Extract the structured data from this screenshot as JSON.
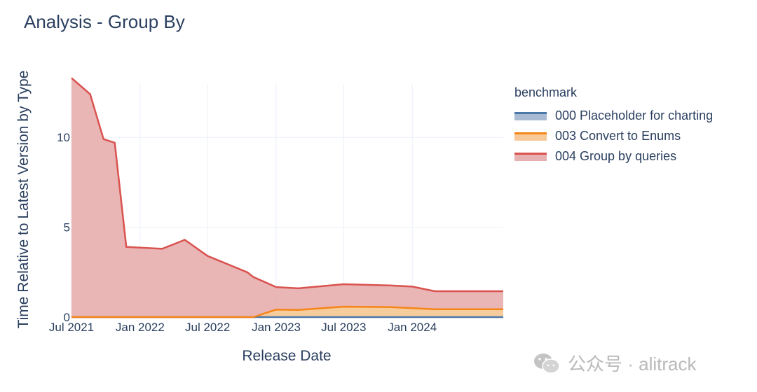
{
  "title": "Analysis - Group By",
  "watermark": "公众号 · alitrack",
  "chart_data": {
    "type": "area",
    "title": "Analysis - Group By",
    "xlabel": "Release Date",
    "ylabel": "Time Relative to Latest Version by Type",
    "x_ticks": [
      "Jul 2021",
      "Jan 2022",
      "Jul 2022",
      "Jan 2023",
      "Jul 2023",
      "Jan 2024"
    ],
    "y_ticks": [
      0,
      5,
      10
    ],
    "xlim": [
      "2021-07-01",
      "2024-09-01"
    ],
    "ylim": [
      0,
      13.9
    ],
    "stacked": true,
    "grid": true,
    "legend_title": "benchmark",
    "legend_position": "right",
    "series": [
      {
        "name": "000 Placeholder for charting",
        "line_color": "#4c78a8",
        "fill_color": "#a9bbd3",
        "x": [
          "2021-07-01",
          "2024-09-01"
        ],
        "values": [
          0,
          0
        ]
      },
      {
        "name": "003 Convert to Enums",
        "line_color": "#f58518",
        "fill_color": "#f7c998",
        "x": [
          "2021-07-01",
          "2022-11-01",
          "2023-01-01",
          "2023-03-01",
          "2023-07-01",
          "2023-11-01",
          "2024-03-01",
          "2024-09-01"
        ],
        "values": [
          0,
          0,
          0.42,
          0.4,
          0.58,
          0.56,
          0.44,
          0.44
        ]
      },
      {
        "name": "004 Group by queries",
        "line_color": "#d9534f",
        "fill_color": "#e8b1b1",
        "x": [
          "2021-07-01",
          "2021-08-20",
          "2021-09-25",
          "2021-10-25",
          "2021-11-25",
          "2022-03-01",
          "2022-05-01",
          "2022-07-01",
          "2022-10-15",
          "2023-01-01",
          "2023-03-01",
          "2023-07-01",
          "2023-11-01",
          "2024-01-01",
          "2024-03-01",
          "2024-09-01"
        ],
        "values": [
          13.3,
          12.4,
          9.9,
          9.7,
          3.9,
          3.8,
          4.3,
          3.4,
          2.5,
          1.25,
          1.2,
          1.25,
          1.2,
          1.2,
          1.0,
          1.0
        ]
      }
    ]
  }
}
